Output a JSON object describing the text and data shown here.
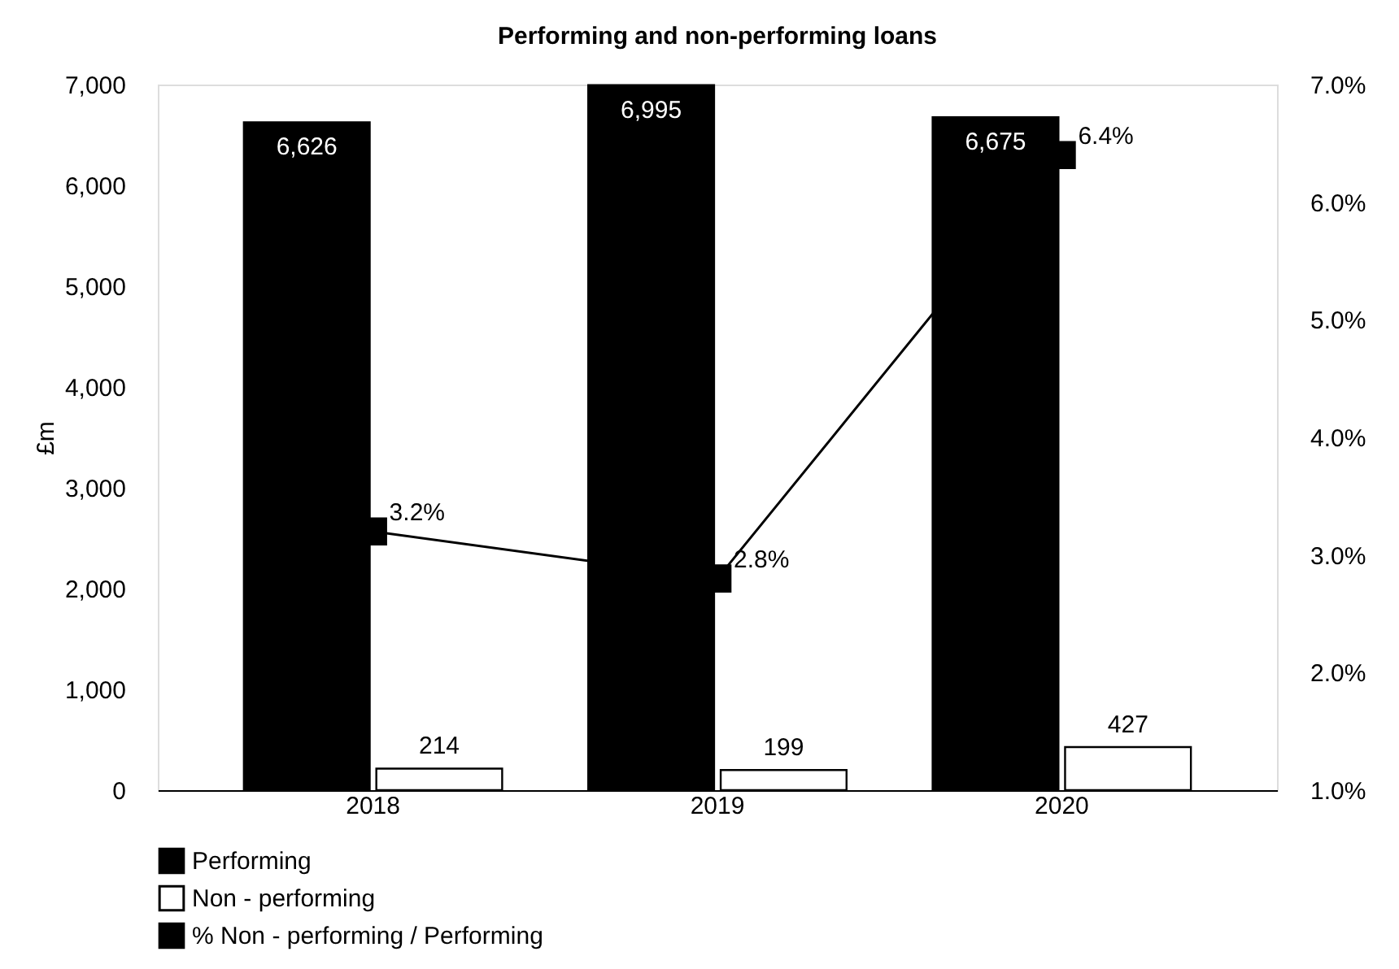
{
  "chart_data": {
    "type": "bar",
    "title": "Performing and non-performing loans",
    "ylabel": "£m",
    "categories": [
      "2018",
      "2019",
      "2020"
    ],
    "series": [
      {
        "name": "Performing",
        "color": "#000000",
        "values": [
          6626,
          6995,
          6675
        ],
        "value_labels": [
          "6,626",
          "6,995",
          "6,675"
        ]
      },
      {
        "name": "Non - performing",
        "color": "#ffffff",
        "values": [
          214,
          199,
          427
        ],
        "value_labels": [
          "214",
          "199",
          "427"
        ]
      },
      {
        "name": "% Non - performing / Performing",
        "type": "line",
        "axis": "y2",
        "color": "#000000",
        "values": [
          3.2,
          2.8,
          6.4
        ],
        "value_labels": [
          "3.2%",
          "2.8%",
          "6.4%"
        ]
      }
    ],
    "ylim": [
      0,
      7000
    ],
    "yticks": [
      0,
      {
        "value": 1000,
        "label": "1,000"
      },
      {
        "value": 2000,
        "label": "2,000"
      },
      {
        "value": 3000,
        "label": "3,000"
      },
      {
        "value": 4000,
        "label": "4,000"
      },
      {
        "value": 5000,
        "label": "5,000"
      },
      {
        "value": 6000,
        "label": "6,000"
      },
      {
        "value": 7000,
        "label": "7,000"
      }
    ],
    "line_style": "solid",
    "y2lim": [
      1,
      7
    ],
    "y2ticks": [
      {
        "value": 1,
        "label": "1.0%"
      },
      {
        "value": 2,
        "label": "2.0%"
      },
      {
        "value": 3,
        "label": "3.0%"
      },
      {
        "value": 4,
        "label": "4.0%"
      },
      {
        "value": 5,
        "label": "5.0%"
      },
      {
        "value": 6,
        "label": "6.0%"
      },
      {
        "value": 7,
        "label": "7.0%"
      }
    ],
    "marker": "square",
    "grid": false,
    "legend": "bottom"
  }
}
